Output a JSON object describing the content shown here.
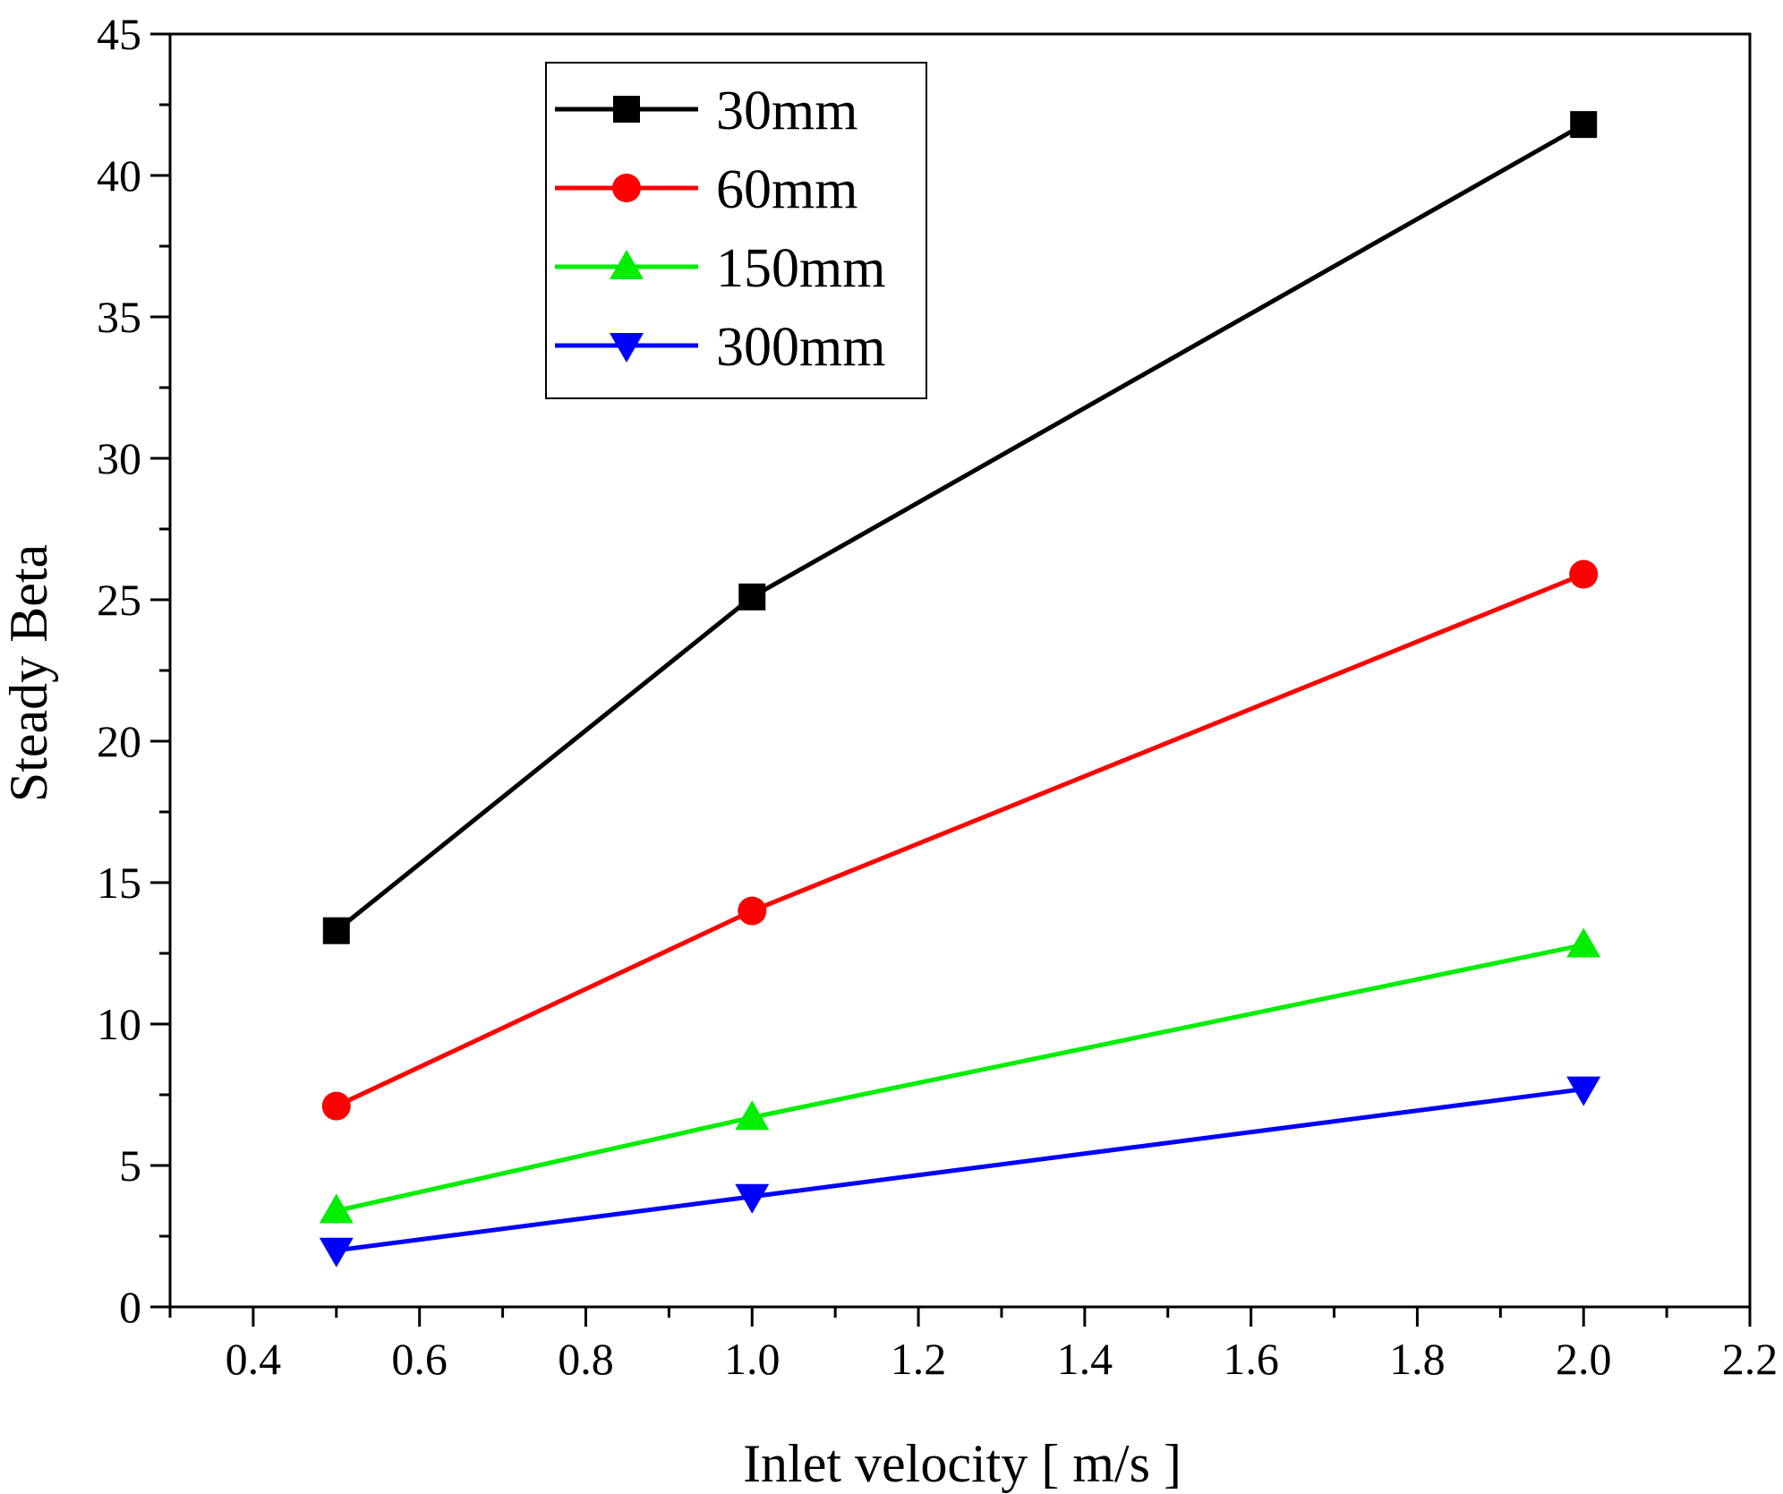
{
  "chart_data": {
    "type": "line",
    "title": "",
    "xlabel": "Inlet velocity [ m/s ]",
    "ylabel": "Steady Beta",
    "xlim": [
      0.3,
      2.2
    ],
    "ylim": [
      0,
      45
    ],
    "x_ticks": [
      0.4,
      0.6,
      0.8,
      1.0,
      1.2,
      1.4,
      1.6,
      1.8,
      2.0,
      2.2
    ],
    "x_tick_labels": [
      "0.4",
      "0.6",
      "0.8",
      "1.0",
      "1.2",
      "1.4",
      "1.6",
      "1.8",
      "2.0",
      "2.2"
    ],
    "y_ticks": [
      0,
      5,
      10,
      15,
      20,
      25,
      30,
      35,
      40,
      45
    ],
    "y_tick_labels": [
      "0",
      "5",
      "10",
      "15",
      "20",
      "25",
      "30",
      "35",
      "40",
      "45"
    ],
    "grid": false,
    "legend_position": "top-left",
    "x": [
      0.5,
      1.0,
      2.0
    ],
    "series": [
      {
        "name": "30mm",
        "values": [
          13.3,
          25.1,
          41.8
        ],
        "color": "#000000",
        "marker": "square"
      },
      {
        "name": "60mm",
        "values": [
          7.1,
          14.0,
          25.9
        ],
        "color": "#ff0000",
        "marker": "circle"
      },
      {
        "name": "150mm",
        "values": [
          3.4,
          6.7,
          12.8
        ],
        "color": "#00ee00",
        "marker": "triangle-up"
      },
      {
        "name": "300mm",
        "values": [
          2.0,
          3.9,
          7.7
        ],
        "color": "#0000ff",
        "marker": "triangle-down"
      }
    ]
  }
}
